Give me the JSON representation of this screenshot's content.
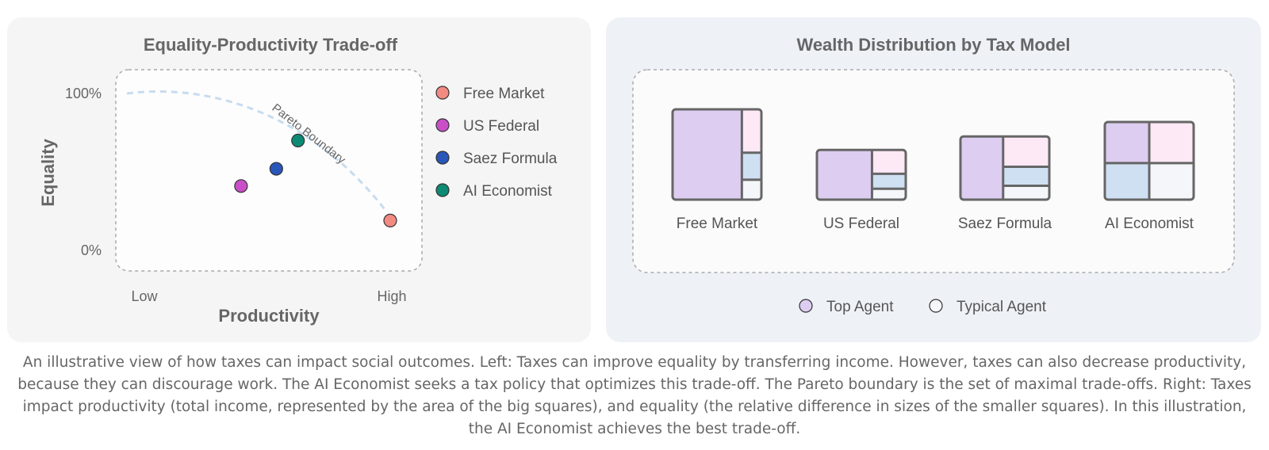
{
  "left": {
    "title": "Equality-Productivity Trade-off",
    "y_tick_top": "100%",
    "y_tick_bottom": "0%",
    "y_label": "Equality",
    "x_tick_low": "Low",
    "x_tick_high": "High",
    "x_label": "Productivity",
    "boundary_label": "Pareto Boundary"
  },
  "chart_data": {
    "type": "scatter",
    "title": "Equality-Productivity Trade-off",
    "xlabel": "Productivity",
    "ylabel": "Equality",
    "x_ticks": [
      "Low",
      "High"
    ],
    "y_ticks": [
      "0%",
      "100%"
    ],
    "legend_position": "right",
    "series": [
      {
        "name": "Free Market",
        "x": 1.0,
        "y": 0.19,
        "color": "#f28b82"
      },
      {
        "name": "US Federal",
        "x": 0.45,
        "y": 0.41,
        "color": "#c94fc9"
      },
      {
        "name": "Saez Formula",
        "x": 0.58,
        "y": 0.52,
        "color": "#2956b8"
      },
      {
        "name": "AI Economist",
        "x": 0.66,
        "y": 0.7,
        "color": "#0d8a73"
      }
    ],
    "annotations": [
      "Pareto Boundary"
    ]
  },
  "right": {
    "title": "Wealth Distribution by Tax Model",
    "models": [
      {
        "name": "Free Market",
        "productivity": 1.0
      },
      {
        "name": "US Federal",
        "productivity": 0.55
      },
      {
        "name": "Saez Formula",
        "productivity": 0.7
      },
      {
        "name": "AI Economist",
        "productivity": 0.86
      }
    ],
    "legend": [
      {
        "label": "Top Agent",
        "color": "#ddcdf0"
      },
      {
        "label": "Typical Agent",
        "color": "#f4f6fa"
      }
    ]
  },
  "caption": "An illustrative view of how taxes can impact social outcomes. Left: Taxes can improve equality by transferring income. However, taxes can also decrease productivity, because they can discourage work. The AI Economist seeks a tax policy that optimizes this trade-off. The Pareto boundary is the set of maximal trade-offs. Right: Taxes impact productivity (total income, represented by the area of the big squares), and equality (the relative difference in sizes of the smaller squares). In this illustration, the AI Economist achieves the best trade-off."
}
